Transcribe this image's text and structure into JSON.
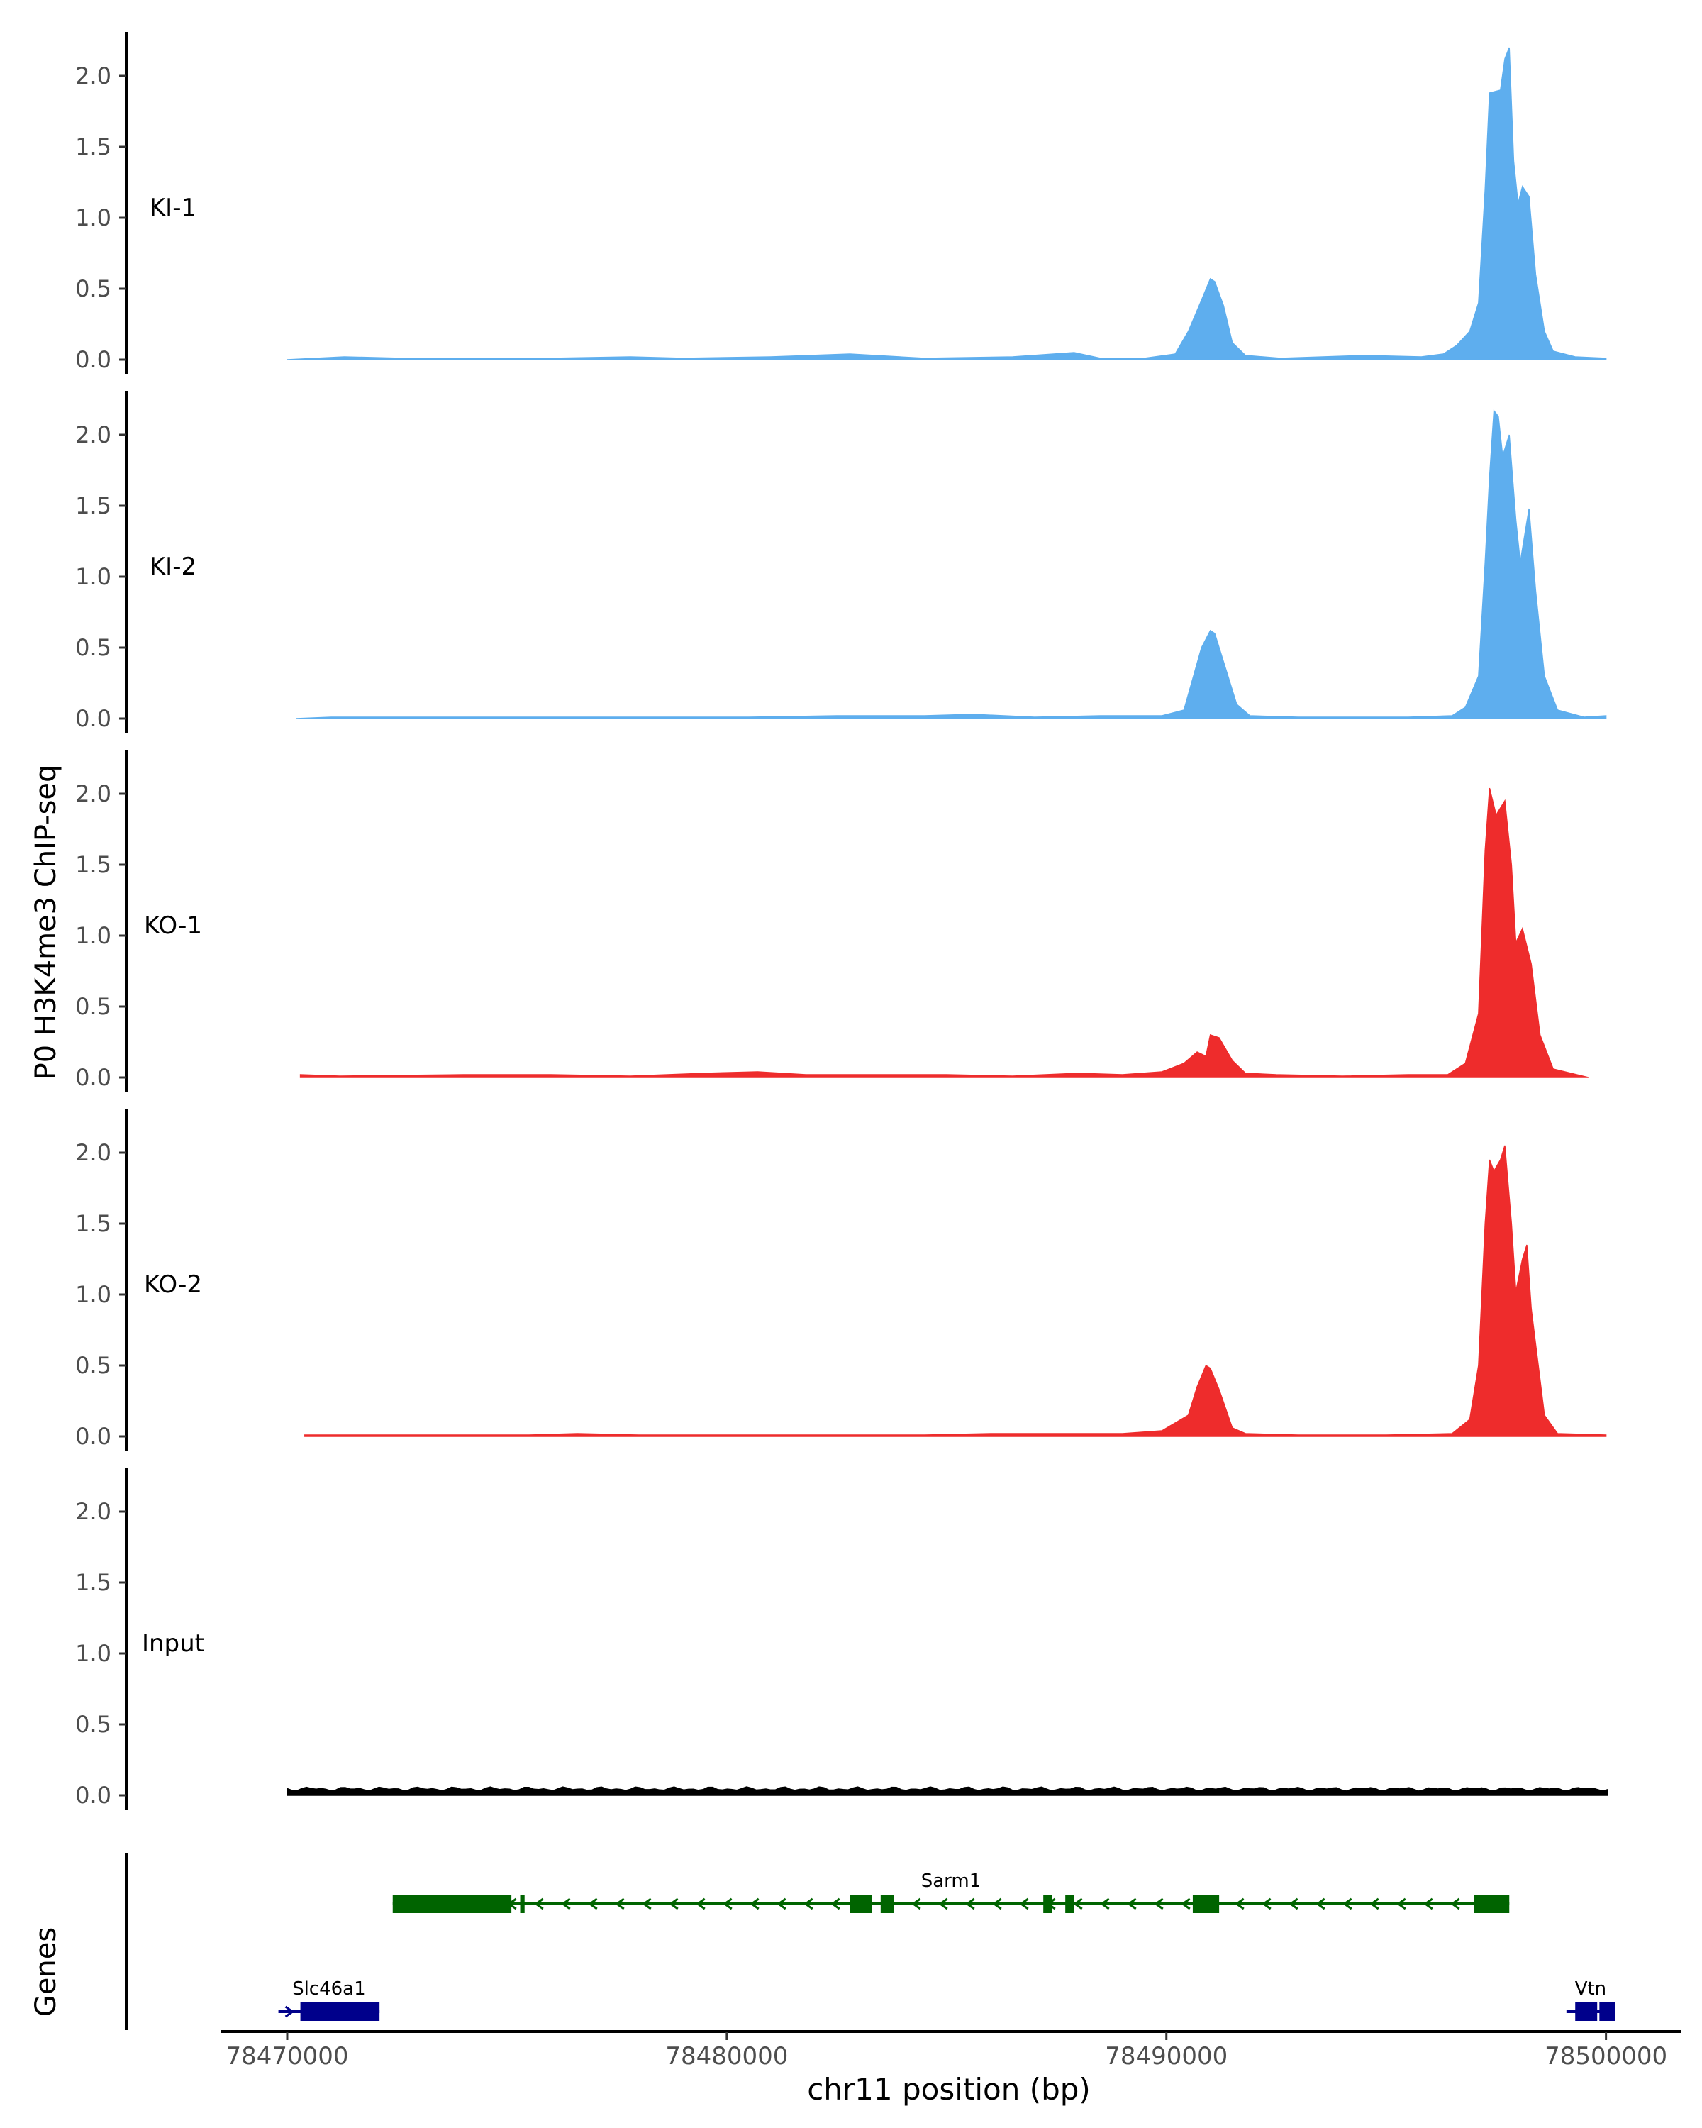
{
  "chart_data": {
    "type": "area",
    "ylabel": "P0 H3K4me3 ChIP-seq",
    "xlabel": "chr11 position (bp)",
    "xlim": [
      78468500,
      78501700
    ],
    "xticks": [
      78470000,
      78480000,
      78490000,
      78500000
    ],
    "xtick_labels": [
      "78470000",
      "78480000",
      "78490000",
      "78500000"
    ],
    "ylim": [
      0,
      2.3
    ],
    "yticks": [
      0.0,
      0.5,
      1.0,
      1.5,
      2.0
    ],
    "ytick_labels": [
      "0.0",
      "0.5",
      "1.0",
      "1.5",
      "2.0"
    ],
    "colors": {
      "KI": "#5eaeee",
      "KO": "#ee2c2c",
      "Input": "#000000",
      "gene_minus": "#006400",
      "gene_plus": "#00008b"
    },
    "tracks": [
      {
        "name": "KI-1",
        "color": "#5eaeee",
        "points": [
          [
            78470000,
            0
          ],
          [
            78471300,
            0.02
          ],
          [
            78472600,
            0.01
          ],
          [
            78474500,
            0.01
          ],
          [
            78476000,
            0.01
          ],
          [
            78477800,
            0.02
          ],
          [
            78479000,
            0.01
          ],
          [
            78481000,
            0.02
          ],
          [
            78482800,
            0.04
          ],
          [
            78484500,
            0.01
          ],
          [
            78486500,
            0.02
          ],
          [
            78487900,
            0.05
          ],
          [
            78488500,
            0.01
          ],
          [
            78489500,
            0.01
          ],
          [
            78490200,
            0.04
          ],
          [
            78490500,
            0.2
          ],
          [
            78490800,
            0.42
          ],
          [
            78491000,
            0.57
          ],
          [
            78491100,
            0.55
          ],
          [
            78491300,
            0.38
          ],
          [
            78491500,
            0.12
          ],
          [
            78491800,
            0.03
          ],
          [
            78492600,
            0.01
          ],
          [
            78494500,
            0.03
          ],
          [
            78495800,
            0.02
          ],
          [
            78496300,
            0.04
          ],
          [
            78496600,
            0.1
          ],
          [
            78496900,
            0.2
          ],
          [
            78497100,
            0.4
          ],
          [
            78497250,
            1.2
          ],
          [
            78497350,
            1.88
          ],
          [
            78497600,
            1.9
          ],
          [
            78497700,
            2.12
          ],
          [
            78497800,
            2.2
          ],
          [
            78497900,
            1.4
          ],
          [
            78498000,
            1.1
          ],
          [
            78498100,
            1.22
          ],
          [
            78498250,
            1.15
          ],
          [
            78498400,
            0.6
          ],
          [
            78498600,
            0.2
          ],
          [
            78498800,
            0.06
          ],
          [
            78499300,
            0.02
          ],
          [
            78500000,
            0.01
          ]
        ]
      },
      {
        "name": "KI-2",
        "color": "#5eaeee",
        "points": [
          [
            78470200,
            0
          ],
          [
            78471000,
            0.01
          ],
          [
            78473000,
            0.01
          ],
          [
            78475000,
            0.01
          ],
          [
            78476800,
            0.01
          ],
          [
            78478500,
            0.01
          ],
          [
            78480500,
            0.01
          ],
          [
            78482500,
            0.02
          ],
          [
            78484500,
            0.02
          ],
          [
            78485600,
            0.03
          ],
          [
            78487000,
            0.01
          ],
          [
            78488500,
            0.02
          ],
          [
            78489900,
            0.02
          ],
          [
            78490400,
            0.06
          ],
          [
            78490600,
            0.28
          ],
          [
            78490800,
            0.5
          ],
          [
            78491000,
            0.62
          ],
          [
            78491100,
            0.6
          ],
          [
            78491300,
            0.4
          ],
          [
            78491600,
            0.1
          ],
          [
            78491900,
            0.02
          ],
          [
            78493000,
            0.01
          ],
          [
            78495500,
            0.01
          ],
          [
            78496500,
            0.02
          ],
          [
            78496800,
            0.08
          ],
          [
            78497100,
            0.3
          ],
          [
            78497250,
            1.1
          ],
          [
            78497350,
            1.7
          ],
          [
            78497450,
            2.17
          ],
          [
            78497550,
            2.13
          ],
          [
            78497650,
            1.85
          ],
          [
            78497800,
            2.0
          ],
          [
            78497950,
            1.4
          ],
          [
            78498050,
            1.1
          ],
          [
            78498250,
            1.48
          ],
          [
            78498400,
            0.9
          ],
          [
            78498600,
            0.3
          ],
          [
            78498900,
            0.06
          ],
          [
            78499500,
            0.01
          ],
          [
            78500000,
            0.02
          ]
        ]
      },
      {
        "name": "KO-1",
        "color": "#ee2c2c",
        "points": [
          [
            78470300,
            0.02
          ],
          [
            78471200,
            0.01
          ],
          [
            78474000,
            0.02
          ],
          [
            78476000,
            0.02
          ],
          [
            78477800,
            0.01
          ],
          [
            78479500,
            0.03
          ],
          [
            78480700,
            0.04
          ],
          [
            78481800,
            0.02
          ],
          [
            78483500,
            0.02
          ],
          [
            78485000,
            0.02
          ],
          [
            78486500,
            0.01
          ],
          [
            78488000,
            0.03
          ],
          [
            78489000,
            0.02
          ],
          [
            78489900,
            0.04
          ],
          [
            78490400,
            0.1
          ],
          [
            78490700,
            0.18
          ],
          [
            78490900,
            0.15
          ],
          [
            78491000,
            0.3
          ],
          [
            78491200,
            0.28
          ],
          [
            78491500,
            0.12
          ],
          [
            78491800,
            0.03
          ],
          [
            78492500,
            0.02
          ],
          [
            78494000,
            0.01
          ],
          [
            78495500,
            0.02
          ],
          [
            78496400,
            0.02
          ],
          [
            78496800,
            0.1
          ],
          [
            78497100,
            0.45
          ],
          [
            78497250,
            1.6
          ],
          [
            78497350,
            2.04
          ],
          [
            78497500,
            1.85
          ],
          [
            78497600,
            1.9
          ],
          [
            78497700,
            1.95
          ],
          [
            78497850,
            1.5
          ],
          [
            78497950,
            0.95
          ],
          [
            78498100,
            1.05
          ],
          [
            78498300,
            0.8
          ],
          [
            78498500,
            0.3
          ],
          [
            78498800,
            0.06
          ],
          [
            78499600,
            0.0
          ]
        ]
      },
      {
        "name": "KO-2",
        "color": "#ee2c2c",
        "points": [
          [
            78470400,
            0.01
          ],
          [
            78472000,
            0.01
          ],
          [
            78474000,
            0.01
          ],
          [
            78475500,
            0.01
          ],
          [
            78476600,
            0.02
          ],
          [
            78478000,
            0.01
          ],
          [
            78480000,
            0.01
          ],
          [
            78481500,
            0.01
          ],
          [
            78483000,
            0.01
          ],
          [
            78484500,
            0.01
          ],
          [
            78486000,
            0.02
          ],
          [
            78487800,
            0.02
          ],
          [
            78489000,
            0.02
          ],
          [
            78489900,
            0.04
          ],
          [
            78490500,
            0.15
          ],
          [
            78490700,
            0.35
          ],
          [
            78490900,
            0.5
          ],
          [
            78491000,
            0.48
          ],
          [
            78491200,
            0.33
          ],
          [
            78491500,
            0.06
          ],
          [
            78491800,
            0.02
          ],
          [
            78493000,
            0.01
          ],
          [
            78495000,
            0.01
          ],
          [
            78496500,
            0.02
          ],
          [
            78496900,
            0.12
          ],
          [
            78497100,
            0.5
          ],
          [
            78497250,
            1.5
          ],
          [
            78497350,
            1.95
          ],
          [
            78497450,
            1.87
          ],
          [
            78497600,
            1.95
          ],
          [
            78497700,
            2.05
          ],
          [
            78497850,
            1.5
          ],
          [
            78497950,
            1.02
          ],
          [
            78498100,
            1.25
          ],
          [
            78498200,
            1.35
          ],
          [
            78498300,
            0.9
          ],
          [
            78498600,
            0.15
          ],
          [
            78498900,
            0.02
          ],
          [
            78500000,
            0.01
          ]
        ]
      },
      {
        "name": "Input",
        "color": "#000000",
        "noise": [
          0.03,
          0.06
        ]
      }
    ],
    "genes_label": "Genes",
    "genes": [
      {
        "name": "Sarm1",
        "strand": "-",
        "color": "#006400",
        "start": 78472400,
        "end": 78497800,
        "exons": [
          [
            78472400,
            78475100
          ],
          [
            78475300,
            78475400
          ],
          [
            78482800,
            78483300
          ],
          [
            78483500,
            78483800
          ],
          [
            78487200,
            78487400
          ],
          [
            78487700,
            78487900
          ],
          [
            78490600,
            78491200
          ],
          [
            78497000,
            78497800
          ]
        ]
      },
      {
        "name": "Slc46a1",
        "strand": "+",
        "color": "#00008b",
        "start": 78469800,
        "end": 78472100,
        "exons": [
          [
            78470300,
            78472100
          ]
        ]
      },
      {
        "name": "Vtn",
        "strand": "-",
        "color": "#00008b",
        "start": 78499100,
        "end": 78500200,
        "exons": [
          [
            78499300,
            78499800
          ],
          [
            78499850,
            78500200
          ]
        ]
      }
    ]
  }
}
